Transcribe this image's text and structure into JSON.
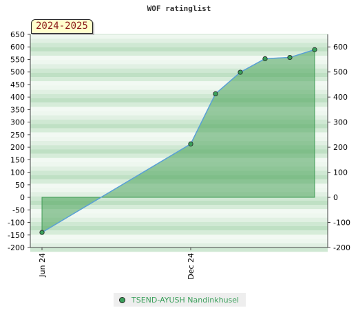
{
  "title": "WOF ratinglist",
  "period_badge": "2024-2025",
  "colors": {
    "line": "#5aa0d8",
    "fill": "#4aa35a",
    "marker": "#3a9f5a",
    "legend_text": "#3a9f5a"
  },
  "chart_data": {
    "type": "area",
    "title": "WOF ratinglist",
    "xlabel": "",
    "ylabel": "",
    "left_axis": {
      "ylim": [
        -200,
        650
      ],
      "ticks": [
        -200,
        -150,
        -100,
        -50,
        0,
        50,
        100,
        150,
        200,
        250,
        300,
        350,
        400,
        450,
        500,
        550,
        600,
        650
      ]
    },
    "right_axis": {
      "ylim": [
        -200,
        650
      ],
      "ticks": [
        -200,
        -100,
        0,
        100,
        200,
        300,
        400,
        500,
        600
      ]
    },
    "x_tick_labels": [
      "Jun 24",
      "Dec 24"
    ],
    "grid": "horizontal bands",
    "legend_position": "bottom-center",
    "series": [
      {
        "name": "TSEND-AYUSH Nandinkhusel",
        "x": [
          "2024-06",
          "2024-12",
          "2025-01",
          "2025-02",
          "2025-03",
          "2025-04",
          "2025-05"
        ],
        "values": [
          -140,
          213,
          413,
          499,
          553,
          558,
          589
        ]
      }
    ]
  }
}
